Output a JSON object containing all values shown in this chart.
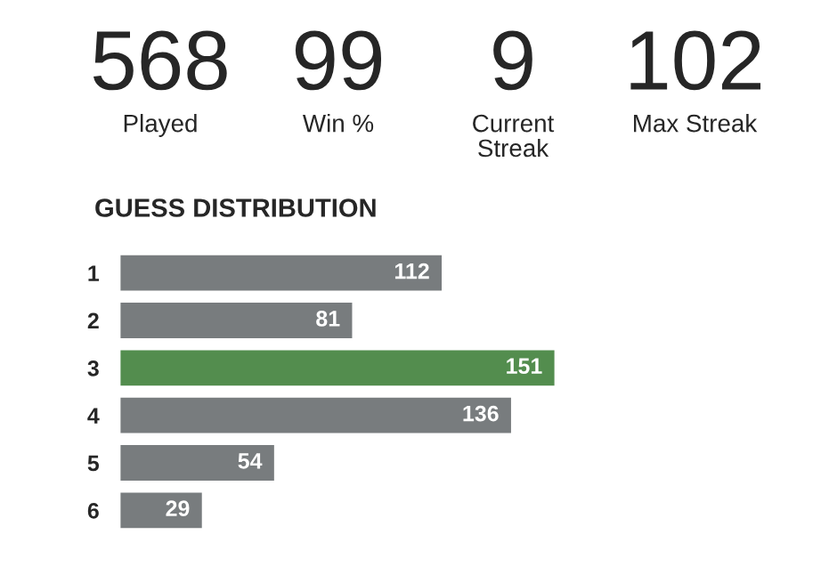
{
  "chart_data": {
    "type": "bar",
    "orientation": "horizontal",
    "title": "GUESS DISTRIBUTION",
    "categories": [
      "1",
      "2",
      "3",
      "4",
      "5",
      "6"
    ],
    "values": [
      112,
      81,
      151,
      136,
      54,
      29
    ],
    "colors": [
      "#787c7e",
      "#787c7e",
      "#538d4e",
      "#787c7e",
      "#787c7e",
      "#787c7e"
    ],
    "data_labels": true,
    "annotations": [
      "568",
      "Played",
      "99",
      "Win %",
      "9",
      "Current Streak",
      "102",
      "Max Streak"
    ]
  }
}
